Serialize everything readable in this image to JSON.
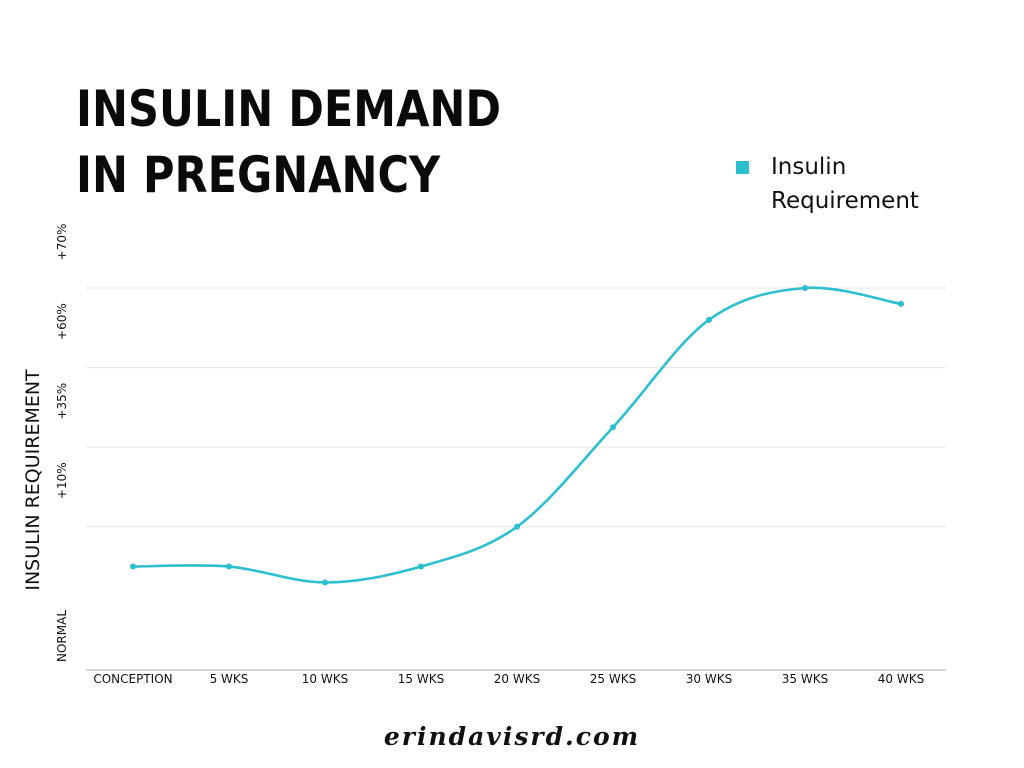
{
  "title": {
    "line1": "INSULIN DEMAND",
    "line2": "IN PREGNANCY"
  },
  "website": "erindavisrd.com",
  "colors": {
    "series": "#2bbfcf",
    "grid": "#e6e6e6",
    "axis": "#bdbdbd",
    "text": "#111111"
  },
  "chart_data": {
    "type": "line",
    "title": "INSULIN DEMAND IN PREGNANCY",
    "xlabel": "",
    "ylabel": "INSULIN REQUIREMENT",
    "categories": [
      "CONCEPTION",
      "5 WKS",
      "10 WKS",
      "15 WKS",
      "20 WKS",
      "25 WKS",
      "30 WKS",
      "35 WKS",
      "40 WKS"
    ],
    "y_scale": "ordinal",
    "y_ticks": [
      {
        "label": "NORMAL",
        "value": 0
      },
      {
        "label": "+10%",
        "value": 1
      },
      {
        "label": "+35%",
        "value": 2
      },
      {
        "label": "+60%",
        "value": 3
      },
      {
        "label": "+70%",
        "value": 4
      }
    ],
    "ylim": [
      -0.8,
      4
    ],
    "series": [
      {
        "name": "Insulin Requirement",
        "values": [
          0.5,
          0.5,
          0.3,
          0.5,
          1.0,
          2.25,
          3.6,
          4.0,
          3.8
        ]
      }
    ],
    "grid": true,
    "legend": "top-right",
    "smooth": true
  }
}
